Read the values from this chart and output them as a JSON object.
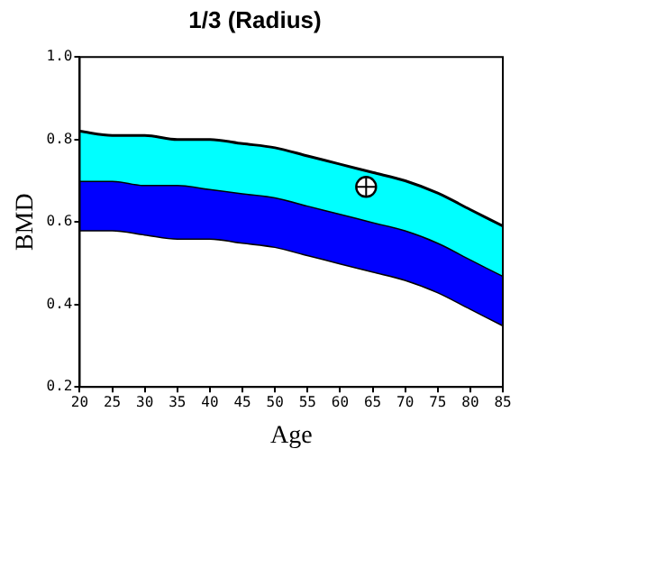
{
  "chart_data": {
    "type": "line",
    "title": "1/3 (Radius)",
    "xlabel": "Age",
    "ylabel": "BMD",
    "x": [
      20,
      25,
      30,
      35,
      40,
      45,
      50,
      55,
      60,
      65,
      70,
      75,
      80,
      85
    ],
    "series": [
      {
        "type": "area",
        "color": "#00ffff",
        "values": [
          0.82,
          0.81,
          0.81,
          0.8,
          0.8,
          0.79,
          0.78,
          0.76,
          0.74,
          0.72,
          0.7,
          0.67,
          0.63,
          0.59
        ]
      },
      {
        "type": "area",
        "color": "#0000ff",
        "values": [
          0.7,
          0.7,
          0.69,
          0.69,
          0.68,
          0.67,
          0.66,
          0.64,
          0.62,
          0.6,
          0.58,
          0.55,
          0.51,
          0.47
        ]
      },
      {
        "color": "#000000",
        "values": [
          0.58,
          0.58,
          0.57,
          0.56,
          0.56,
          0.55,
          0.54,
          0.52,
          0.5,
          0.48,
          0.46,
          0.43,
          0.39,
          0.35
        ]
      },
      {
        "type": "scatter",
        "color": "#ffffff",
        "x": [
          64
        ],
        "values": [
          0.685
        ],
        "marker": "circle"
      }
    ],
    "xlim": [
      20,
      85
    ],
    "xticks": [
      20,
      25,
      30,
      35,
      40,
      45,
      50,
      55,
      60,
      65,
      70,
      75,
      80,
      85
    ],
    "ylim": [
      0.2,
      1.0
    ],
    "yticks": [
      {
        "value": 0.2,
        "label": "0.2"
      },
      {
        "value": 0.4,
        "label": "0.4"
      },
      {
        "value": 0.6,
        "label": "0.6"
      },
      {
        "value": 0.8,
        "label": "0.8"
      },
      {
        "value": 1.0,
        "label": "1.0"
      }
    ],
    "grid": false,
    "legend": false
  }
}
